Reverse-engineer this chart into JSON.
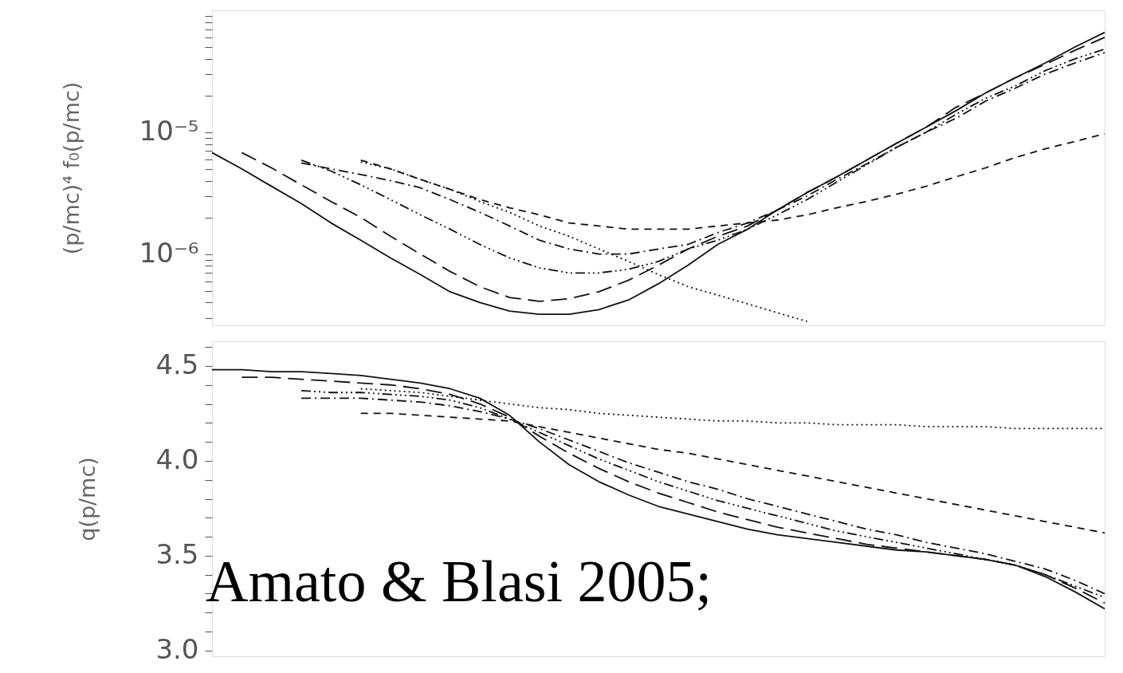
{
  "chart_data": [
    {
      "type": "line",
      "ylabel": "(p/mc)⁴ f₀(p/mc)",
      "log": true,
      "ylim": [
        2.6e-07,
        0.0001
      ],
      "yticks": [
        {
          "value": 1e-05,
          "label": "10⁻⁵"
        },
        {
          "value": 1e-06,
          "label": "10⁻⁶"
        },
        {
          "value": 3e-07,
          "label": null
        },
        {
          "value": 4e-07,
          "label": null
        },
        {
          "value": 5e-07,
          "label": null
        },
        {
          "value": 6e-07,
          "label": null
        },
        {
          "value": 7e-07,
          "label": null
        },
        {
          "value": 8e-07,
          "label": null
        },
        {
          "value": 9e-07,
          "label": null
        },
        {
          "value": 2e-06,
          "label": null
        },
        {
          "value": 3e-06,
          "label": null
        },
        {
          "value": 4e-06,
          "label": null
        },
        {
          "value": 5e-06,
          "label": null
        },
        {
          "value": 6e-06,
          "label": null
        },
        {
          "value": 7e-06,
          "label": null
        },
        {
          "value": 8e-06,
          "label": null
        },
        {
          "value": 9e-06,
          "label": null
        },
        {
          "value": 2e-05,
          "label": null
        },
        {
          "value": 3e-05,
          "label": null
        },
        {
          "value": 4e-05,
          "label": null
        },
        {
          "value": 5e-05,
          "label": null
        },
        {
          "value": 6e-05,
          "label": null
        },
        {
          "value": 7e-05,
          "label": null
        },
        {
          "value": 8e-05,
          "label": null
        },
        {
          "value": 9e-05,
          "label": null
        }
      ],
      "tick_labels": "y",
      "grid": false,
      "categories": [
        null,
        null,
        null,
        null,
        null,
        null,
        null,
        null,
        null,
        null,
        null,
        null,
        null,
        null,
        null,
        null,
        null,
        null,
        null,
        null,
        null,
        null,
        null,
        null,
        null,
        null,
        null,
        null,
        null,
        null,
        null
      ],
      "series": [
        {
          "color": "#111111",
          "line_style": "solid",
          "values": [
            6.8e-06,
            5e-06,
            3.6e-06,
            2.6e-06,
            1.8e-06,
            1.3e-06,
            9.3e-07,
            6.8e-07,
            4.9e-07,
            4e-07,
            3.4e-07,
            3.2e-07,
            3.2e-07,
            3.5e-07,
            4.2e-07,
            5.7e-07,
            8.1e-07,
            1.2e-06,
            1.6e-06,
            2.3e-06,
            3.2e-06,
            4.3e-06,
            5.9e-06,
            8.1e-06,
            1.1e-05,
            1.5e-05,
            2.1e-05,
            2.8e-05,
            3.7e-05,
            5e-05,
            6.6e-05
          ]
        },
        {
          "color": "#111111",
          "line_style": "longdash",
          "values": [
            null,
            6.8e-06,
            5.1e-06,
            3.7e-06,
            2.7e-06,
            2e-06,
            1.4e-06,
            1e-06,
            7.2e-07,
            5.4e-07,
            4.4e-07,
            4.1e-07,
            4.3e-07,
            4.9e-07,
            6.1e-07,
            8.1e-07,
            1.1e-06,
            1.4e-06,
            1.7e-06,
            2.3e-06,
            3.2e-06,
            4.3e-06,
            5.9e-06,
            8.1e-06,
            1.1e-05,
            1.6e-05,
            2.1e-05,
            2.8e-05,
            3.6e-05,
            4.7e-05,
            6e-05
          ]
        },
        {
          "color": "#111111",
          "line_style": "dashdotdotdot",
          "values": [
            null,
            null,
            null,
            5.9e-06,
            4.8e-06,
            3.7e-06,
            2.8e-06,
            2.1e-06,
            1.6e-06,
            1.2e-06,
            9.3e-07,
            7.7e-07,
            7e-07,
            7e-07,
            7.5e-07,
            8.7e-07,
            1.1e-06,
            1.3e-06,
            1.6e-06,
            2.1e-06,
            2.8e-06,
            3.9e-06,
            5.4e-06,
            7.5e-06,
            1e-05,
            1.4e-05,
            1.9e-05,
            2.4e-05,
            3.2e-05,
            4e-05,
            4.8e-05
          ]
        },
        {
          "color": "#111111",
          "line_style": "dashdot",
          "values": [
            null,
            null,
            null,
            5.6e-06,
            5e-06,
            4.5e-06,
            4e-06,
            3.5e-06,
            2.8e-06,
            2.2e-06,
            1.7e-06,
            1.3e-06,
            1.1e-06,
            1e-06,
            1e-06,
            1.1e-06,
            1.2e-06,
            1.5e-06,
            1.8e-06,
            2.3e-06,
            3e-06,
            4.1e-06,
            5.5e-06,
            7.5e-06,
            1e-05,
            1.3e-05,
            1.8e-05,
            2.3e-05,
            3e-05,
            3.7e-05,
            4.5e-05
          ]
        },
        {
          "color": "#111111",
          "line_style": "dashed",
          "values": [
            null,
            null,
            null,
            null,
            null,
            5.9e-06,
            5e-06,
            4.1e-06,
            3.4e-06,
            2.8e-06,
            2.4e-06,
            2.1e-06,
            1.8e-06,
            1.7e-06,
            1.6e-06,
            1.6e-06,
            1.6e-06,
            1.7e-06,
            1.8e-06,
            1.9e-06,
            2.1e-06,
            2.4e-06,
            2.7e-06,
            3.1e-06,
            3.6e-06,
            4.3e-06,
            5.1e-06,
            6.2e-06,
            7.3e-06,
            8.4e-06,
            9.7e-06
          ]
        },
        {
          "color": "#111111",
          "line_style": "dotted",
          "values": [
            null,
            null,
            null,
            null,
            null,
            5.7e-06,
            5e-06,
            4.1e-06,
            3.4e-06,
            2.7e-06,
            2.2e-06,
            1.7e-06,
            1.4e-06,
            1.1e-06,
            8.7e-07,
            6.8e-07,
            5.4e-07,
            4.6e-07,
            3.9e-07,
            3.3e-07,
            2.8e-07,
            null,
            null,
            null,
            null,
            null,
            null,
            null,
            null,
            null,
            null
          ]
        }
      ]
    },
    {
      "type": "line",
      "ylabel": "q(p/mc)",
      "ylim": [
        2.97,
        4.63
      ],
      "yticks": [
        {
          "value": 3.0,
          "label": "3.0"
        },
        {
          "value": 3.5,
          "label": "3.5"
        },
        {
          "value": 4.0,
          "label": "4.0"
        },
        {
          "value": 4.5,
          "label": "4.5"
        },
        {
          "value": 3.1,
          "label": null
        },
        {
          "value": 3.2,
          "label": null
        },
        {
          "value": 3.3,
          "label": null
        },
        {
          "value": 3.4,
          "label": null
        },
        {
          "value": 3.6,
          "label": null
        },
        {
          "value": 3.7,
          "label": null
        },
        {
          "value": 3.8,
          "label": null
        },
        {
          "value": 3.9,
          "label": null
        },
        {
          "value": 4.1,
          "label": null
        },
        {
          "value": 4.2,
          "label": null
        },
        {
          "value": 4.3,
          "label": null
        },
        {
          "value": 4.4,
          "label": null
        },
        {
          "value": 4.6,
          "label": null
        }
      ],
      "tick_labels": "y",
      "grid": false,
      "annotations": [
        "Amato & Blasi 2005;"
      ],
      "categories": [
        null,
        null,
        null,
        null,
        null,
        null,
        null,
        null,
        null,
        null,
        null,
        null,
        null,
        null,
        null,
        null,
        null,
        null,
        null,
        null,
        null,
        null,
        null,
        null,
        null,
        null,
        null,
        null,
        null,
        null,
        null
      ],
      "series": [
        {
          "color": "#111111",
          "line_style": "solid",
          "values": [
            4.48,
            4.48,
            4.47,
            4.47,
            4.46,
            4.45,
            4.43,
            4.41,
            4.38,
            4.33,
            4.24,
            4.1,
            3.98,
            3.89,
            3.82,
            3.76,
            3.72,
            3.68,
            3.64,
            3.61,
            3.59,
            3.57,
            3.55,
            3.53,
            3.52,
            3.5,
            3.48,
            3.45,
            3.39,
            3.31,
            3.22
          ]
        },
        {
          "color": "#111111",
          "line_style": "longdash",
          "values": [
            null,
            4.44,
            4.44,
            4.43,
            4.42,
            4.41,
            4.4,
            4.38,
            4.35,
            4.3,
            4.23,
            4.13,
            4.04,
            3.96,
            3.89,
            3.83,
            3.78,
            3.73,
            3.69,
            3.65,
            3.62,
            3.59,
            3.56,
            3.54,
            3.52,
            3.5,
            3.48,
            3.45,
            3.4,
            3.33,
            3.25
          ]
        },
        {
          "color": "#111111",
          "line_style": "dashdotdotdot",
          "values": [
            null,
            null,
            null,
            4.37,
            4.36,
            4.36,
            4.35,
            4.34,
            4.32,
            4.28,
            4.22,
            4.15,
            4.08,
            4.01,
            3.95,
            3.89,
            3.84,
            3.79,
            3.75,
            3.71,
            3.67,
            3.63,
            3.6,
            3.57,
            3.54,
            3.51,
            3.48,
            3.45,
            3.4,
            3.34,
            3.28
          ]
        },
        {
          "color": "#111111",
          "line_style": "dashdot",
          "values": [
            null,
            null,
            null,
            4.33,
            4.33,
            4.33,
            4.32,
            4.31,
            4.29,
            4.26,
            4.22,
            4.17,
            4.11,
            4.05,
            3.99,
            3.94,
            3.89,
            3.85,
            3.8,
            3.76,
            3.72,
            3.68,
            3.64,
            3.61,
            3.57,
            3.54,
            3.51,
            3.47,
            3.43,
            3.37,
            3.3
          ]
        },
        {
          "color": "#111111",
          "line_style": "dashed",
          "values": [
            null,
            null,
            null,
            null,
            null,
            4.25,
            4.25,
            4.24,
            4.23,
            4.22,
            4.21,
            4.18,
            4.15,
            4.12,
            4.09,
            4.06,
            4.04,
            4.01,
            3.98,
            3.95,
            3.92,
            3.89,
            3.86,
            3.83,
            3.8,
            3.77,
            3.74,
            3.71,
            3.68,
            3.65,
            3.62
          ]
        },
        {
          "color": "#111111",
          "line_style": "dotted",
          "values": [
            null,
            null,
            null,
            null,
            null,
            4.38,
            4.37,
            4.36,
            4.34,
            4.32,
            4.3,
            4.28,
            4.27,
            4.25,
            4.24,
            4.23,
            4.22,
            4.21,
            4.21,
            4.2,
            4.2,
            4.19,
            4.19,
            4.19,
            4.18,
            4.18,
            4.18,
            4.17,
            4.17,
            4.17,
            4.17
          ]
        }
      ]
    }
  ]
}
